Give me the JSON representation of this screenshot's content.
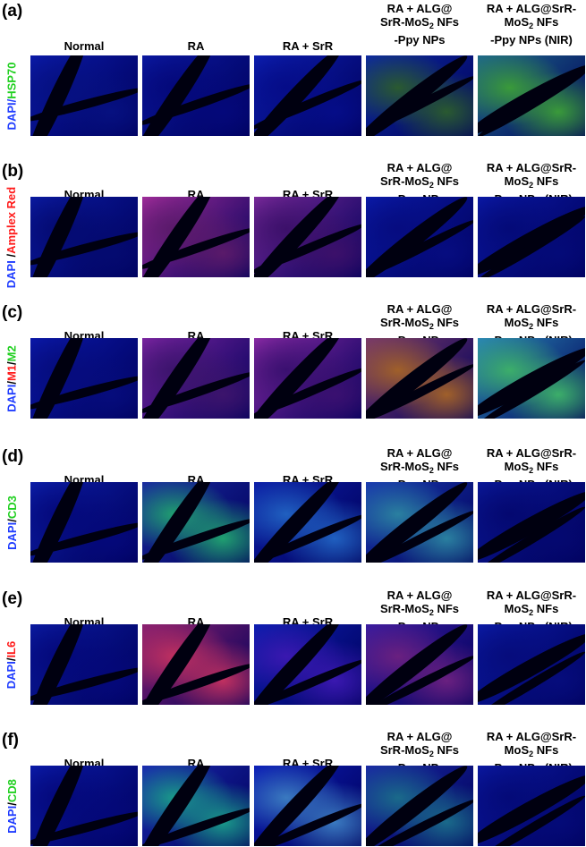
{
  "columns": {
    "normal": "Normal",
    "ra": "RA",
    "ra_srr": "RA + SrR",
    "alg_line1": "RA + ALG@",
    "alg_line2_a": "SrR-MoS",
    "alg_line2_sub": "2",
    "alg_line2_b": " NFs",
    "alg_line3": "-Ppy NPs",
    "nir_line1": "RA + ALG@SrR-",
    "nir_line2_a": "MoS",
    "nir_line2_sub": "2",
    "nir_line2_b": " NFs",
    "nir_line3": "-Ppy NPs (NIR)"
  },
  "panels": [
    {
      "label": "(a)",
      "stain_parts": [
        {
          "text": "DAPI",
          "color": "blue"
        },
        {
          "text": "/",
          "color": "blue"
        },
        {
          "text": "HSP70",
          "color": "green"
        }
      ]
    },
    {
      "label": "(b)",
      "stain_parts": [
        {
          "text": "DAPI",
          "color": "blue"
        },
        {
          "text": " /",
          "color": "black"
        },
        {
          "text": "Amplex Red",
          "color": "red"
        }
      ]
    },
    {
      "label": "(c)",
      "stain_parts": [
        {
          "text": "DAPI",
          "color": "blue"
        },
        {
          "text": "/",
          "color": "black"
        },
        {
          "text": "M1",
          "color": "red"
        },
        {
          "text": "/",
          "color": "black"
        },
        {
          "text": "M2",
          "color": "green"
        }
      ]
    },
    {
      "label": "(d)",
      "stain_parts": [
        {
          "text": "DAPI",
          "color": "blue"
        },
        {
          "text": "/",
          "color": "black"
        },
        {
          "text": "CD3",
          "color": "green"
        }
      ]
    },
    {
      "label": "(e)",
      "stain_parts": [
        {
          "text": "DAPI",
          "color": "blue"
        },
        {
          "text": "/",
          "color": "black"
        },
        {
          "text": "IL6",
          "color": "red"
        }
      ]
    },
    {
      "label": "(f)",
      "stain_parts": [
        {
          "text": "DAPI",
          "color": "blue"
        },
        {
          "text": "/",
          "color": "black"
        },
        {
          "text": "CD8",
          "color": "green"
        }
      ]
    }
  ],
  "colors": {
    "blue": "#1f3cff",
    "green": "#22d022",
    "red": "#ff1a1a",
    "black": "#000000"
  }
}
